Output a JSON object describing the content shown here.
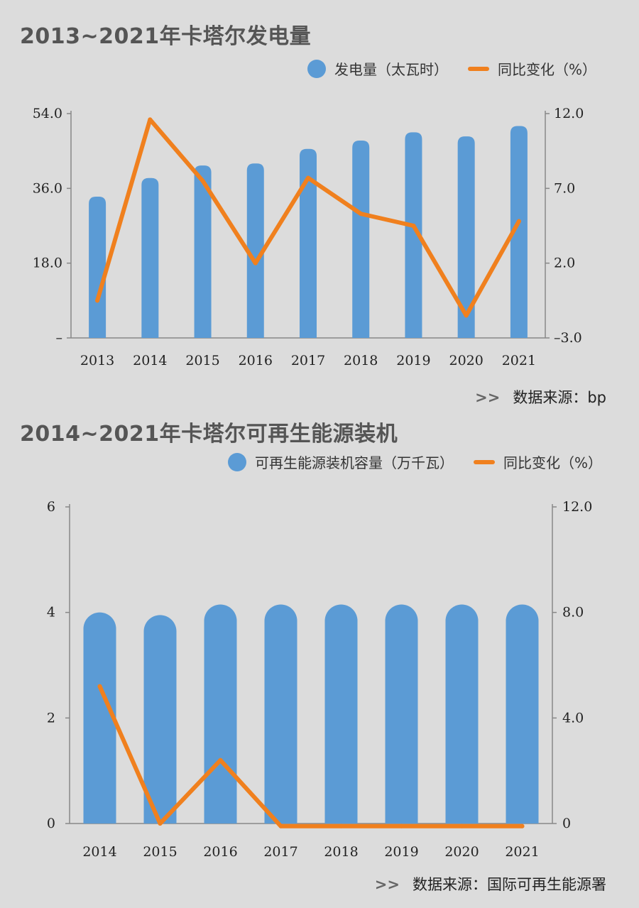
{
  "chart_data": [
    {
      "type": "bar",
      "title": "2013~2021年卡塔尔发电量",
      "categories": [
        "2013",
        "2014",
        "2015",
        "2016",
        "2017",
        "2018",
        "2019",
        "2020",
        "2021"
      ],
      "series": [
        {
          "name": "发电量（太瓦时）",
          "type": "bar",
          "axis": "left",
          "values": [
            34.0,
            38.5,
            41.5,
            42.0,
            45.5,
            47.5,
            49.5,
            48.5,
            51.0
          ]
        },
        {
          "name": "同比变化（%）",
          "type": "line",
          "axis": "right",
          "values": [
            -0.5,
            11.6,
            7.5,
            2.0,
            7.7,
            5.3,
            4.5,
            -1.5,
            4.8
          ]
        }
      ],
      "y_left": {
        "min": 0,
        "max": 54,
        "ticks": [
          0,
          18,
          36,
          54
        ],
        "tick_labels": [
          "–",
          "18.0",
          "36.0",
          "54.0"
        ]
      },
      "y_right": {
        "min": -3,
        "max": 12,
        "ticks": [
          -3,
          2,
          7,
          12
        ],
        "tick_labels": [
          "–3.0",
          "2.0",
          "7.0",
          "12.0"
        ]
      },
      "legend": "top-right",
      "grid": false,
      "source": "数据来源：bp"
    },
    {
      "type": "bar",
      "title": "2014~2021年卡塔尔可再生能源装机",
      "categories": [
        "2014",
        "2015",
        "2016",
        "2017",
        "2018",
        "2019",
        "2020",
        "2021"
      ],
      "series": [
        {
          "name": "可再生能源装机容量（万千瓦）",
          "type": "bar",
          "axis": "left",
          "values": [
            4.0,
            3.95,
            4.15,
            4.15,
            4.15,
            4.15,
            4.15,
            4.15
          ]
        },
        {
          "name": "同比变化（%）",
          "type": "line",
          "axis": "right",
          "values": [
            5.2,
            0.0,
            2.4,
            -0.1,
            -0.1,
            -0.1,
            -0.1,
            -0.1
          ]
        }
      ],
      "y_left": {
        "min": 0,
        "max": 6,
        "ticks": [
          0,
          2,
          4,
          6
        ],
        "tick_labels": [
          "0",
          "2",
          "4",
          "6"
        ]
      },
      "y_right": {
        "min": 0,
        "max": 12,
        "ticks": [
          0,
          4,
          8,
          12
        ],
        "tick_labels": [
          "0",
          "4.0",
          "8.0",
          "12.0"
        ]
      },
      "legend": "top-right",
      "grid": false,
      "source": "数据来源：国际可再生能源署"
    }
  ],
  "colors": {
    "bar": "#5b9bd5",
    "line": "#f0801e",
    "axis": "#888888"
  },
  "source_arrows": ">>"
}
